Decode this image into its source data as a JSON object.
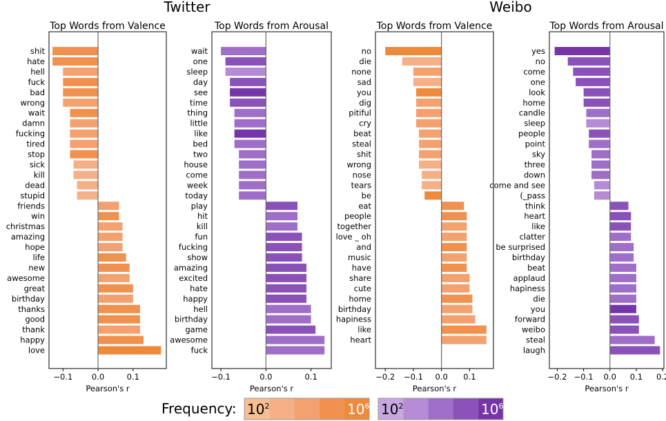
{
  "group_titles": [
    "Twitter",
    "Weibo"
  ],
  "legend": {
    "title": "Frequency:",
    "low": "10",
    "low_exp": "2",
    "high": "10",
    "high_exp": "6",
    "orange_scale": [
      "#f7bd94",
      "#f5b087",
      "#f3a16f",
      "#f0914f",
      "#ee8a3c"
    ],
    "purple_scale": [
      "#c6a7df",
      "#b48bd4",
      "#9f6ec8",
      "#8a52b8",
      "#7535a8"
    ]
  },
  "chart_data": [
    {
      "type": "bar",
      "orientation": "horizontal",
      "title": "Top Words from Valence",
      "xlabel": "Pearson's r",
      "xlim": [
        -0.14,
        0.195
      ],
      "xticks": [
        -0.1,
        0.0,
        0.1
      ],
      "xtick_labels": [
        "−0.1",
        "0.0",
        "0.1"
      ],
      "color_family": "orange",
      "categories": [
        "shit",
        "hate",
        "hell",
        "fuck",
        "bad",
        "wrong",
        "wait",
        "damn",
        "fucking",
        "tired",
        "stop",
        "sick",
        "kill",
        "dead",
        "stupid",
        "friends",
        "win",
        "christmas",
        "amazing",
        "hope",
        "life",
        "new",
        "awesome",
        "great",
        "birthday",
        "thanks",
        "good",
        "thank",
        "happy",
        "love"
      ],
      "values": [
        -0.13,
        -0.13,
        -0.1,
        -0.1,
        -0.1,
        -0.1,
        -0.08,
        -0.08,
        -0.08,
        -0.08,
        -0.08,
        -0.07,
        -0.07,
        -0.06,
        -0.06,
        0.06,
        0.06,
        0.07,
        0.07,
        0.07,
        0.08,
        0.09,
        0.09,
        0.1,
        0.1,
        0.12,
        0.12,
        0.12,
        0.13,
        0.18
      ],
      "frequency_level": [
        3,
        3,
        2,
        3,
        3,
        2,
        3,
        2,
        2,
        2,
        3,
        1,
        1,
        1,
        1,
        2,
        3,
        2,
        2,
        2,
        3,
        3,
        2,
        3,
        2,
        3,
        3,
        2,
        3,
        4
      ]
    },
    {
      "type": "bar",
      "orientation": "horizontal",
      "title": "Top Words from Arousal",
      "xlabel": "Pearson's r",
      "xlim": [
        -0.12,
        0.145
      ],
      "xticks": [
        -0.1,
        0.0,
        0.1
      ],
      "xtick_labels": [
        "−0.1",
        "0.0",
        "0.1"
      ],
      "color_family": "purple",
      "categories": [
        "wait",
        "one",
        "sleep",
        "day",
        "see",
        "time",
        "thing",
        "little",
        "like",
        "bed",
        "two",
        "house",
        "come",
        "week",
        "today",
        "play",
        "hit",
        "kill",
        "fun",
        "fucking",
        "show",
        "amazing",
        "excited",
        "hate",
        "happy",
        "hell",
        "birthday",
        "game",
        "awesome",
        "fuck"
      ],
      "values": [
        -0.1,
        -0.09,
        -0.09,
        -0.08,
        -0.08,
        -0.08,
        -0.07,
        -0.07,
        -0.07,
        -0.07,
        -0.06,
        -0.06,
        -0.06,
        -0.06,
        -0.06,
        0.07,
        0.07,
        0.07,
        0.08,
        0.08,
        0.08,
        0.09,
        0.09,
        0.09,
        0.09,
        0.1,
        0.1,
        0.11,
        0.13,
        0.13
      ],
      "frequency_level": [
        2,
        3,
        1,
        3,
        4,
        3,
        2,
        2,
        4,
        2,
        2,
        2,
        2,
        2,
        2,
        3,
        2,
        2,
        3,
        3,
        3,
        3,
        3,
        3,
        3,
        2,
        2,
        3,
        2,
        2
      ]
    },
    {
      "type": "bar",
      "orientation": "horizontal",
      "title": "Top Words from Valence",
      "xlabel": "Pearson's r",
      "xlim": [
        -0.235,
        0.185
      ],
      "xticks": [
        -0.2,
        -0.1,
        0.0,
        0.1
      ],
      "xtick_labels": [
        "−0.2",
        "−0.1",
        "0.0",
        "0.1"
      ],
      "color_family": "orange",
      "categories": [
        "no",
        "die",
        "none",
        "sad",
        "you",
        "dig",
        "pitiful",
        "cry",
        "beat",
        "steal",
        "shit",
        "wrong",
        "nose",
        "tears",
        "be",
        "eat",
        "people",
        "together",
        "love _ oh",
        "and",
        "music",
        "have",
        "share",
        "cute",
        "home",
        "birthday",
        "hapiness",
        "like",
        "heart"
      ],
      "values": [
        -0.2,
        -0.14,
        -0.1,
        -0.1,
        -0.09,
        -0.09,
        -0.09,
        -0.09,
        -0.08,
        -0.08,
        -0.08,
        -0.08,
        -0.07,
        -0.07,
        -0.06,
        0.08,
        0.09,
        0.09,
        0.09,
        0.09,
        0.09,
        0.09,
        0.1,
        0.1,
        0.11,
        0.11,
        0.12,
        0.16,
        0.16
      ],
      "frequency_level": [
        4,
        1,
        2,
        1,
        4,
        2,
        2,
        2,
        2,
        2,
        2,
        1,
        1,
        1,
        4,
        3,
        3,
        2,
        2,
        3,
        2,
        3,
        2,
        2,
        3,
        2,
        2,
        3,
        2
      ]
    },
    {
      "type": "bar",
      "orientation": "horizontal",
      "title": "Top Words from Arousal",
      "xlabel": "Pearson's r",
      "xlim": [
        -0.23,
        0.205
      ],
      "xticks": [
        -0.2,
        -0.1,
        0.0,
        0.1,
        0.2
      ],
      "xtick_labels": [
        "−0.2",
        "−0.1",
        "0.0",
        "0.1",
        "0.2"
      ],
      "color_family": "purple",
      "categories": [
        "yes",
        "no",
        "come",
        "one",
        "look",
        "home",
        "candle",
        "sleep",
        "people",
        "point",
        "sky",
        "three",
        "down",
        "come and see",
        "(_pass",
        "think",
        "heart",
        "like",
        "clatter",
        "be surprised",
        "birthday",
        "beat",
        "applaud",
        "hapiness",
        "die",
        "you",
        "forward",
        "weibo",
        "steal",
        "laugh"
      ],
      "values": [
        -0.21,
        -0.16,
        -0.14,
        -0.13,
        -0.1,
        -0.1,
        -0.09,
        -0.09,
        -0.08,
        -0.08,
        -0.07,
        -0.07,
        -0.07,
        -0.06,
        -0.06,
        0.07,
        0.08,
        0.08,
        0.08,
        0.09,
        0.09,
        0.1,
        0.1,
        0.1,
        0.1,
        0.1,
        0.11,
        0.11,
        0.17,
        0.19
      ],
      "frequency_level": [
        4,
        3,
        3,
        3,
        3,
        3,
        2,
        1,
        3,
        2,
        2,
        2,
        2,
        1,
        1,
        3,
        3,
        3,
        2,
        2,
        2,
        2,
        2,
        2,
        2,
        4,
        3,
        3,
        2,
        3
      ]
    }
  ]
}
